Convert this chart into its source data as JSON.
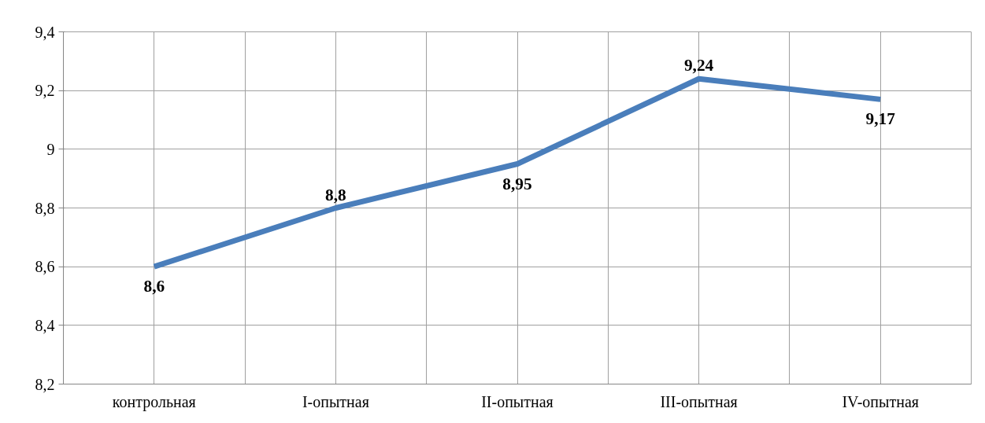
{
  "chart_data": {
    "type": "line",
    "categories": [
      "контрольная",
      "I-опытная",
      "II-опытная",
      "III-опытная",
      "IV-опытная"
    ],
    "series": [
      {
        "color": "#4a7ebb",
        "values": [
          8.6,
          8.8,
          8.95,
          9.24,
          9.17
        ]
      }
    ],
    "value_labels": [
      "8,6",
      "8,8",
      "8,95",
      "9,24",
      "9,17"
    ],
    "ylim": [
      8.2,
      9.4
    ],
    "yticks": [
      {
        "value": 8.2,
        "label": "8,2"
      },
      {
        "value": 8.4,
        "label": "8,4"
      },
      {
        "value": 8.6,
        "label": "8,6"
      },
      {
        "value": 8.8,
        "label": "8,8"
      },
      {
        "value": 9,
        "label": "9"
      },
      {
        "value": 9.2,
        "label": "9,2"
      },
      {
        "value": 9.4,
        "label": "9,4"
      }
    ],
    "grid": true,
    "marker": "none",
    "line_style": "solid"
  }
}
